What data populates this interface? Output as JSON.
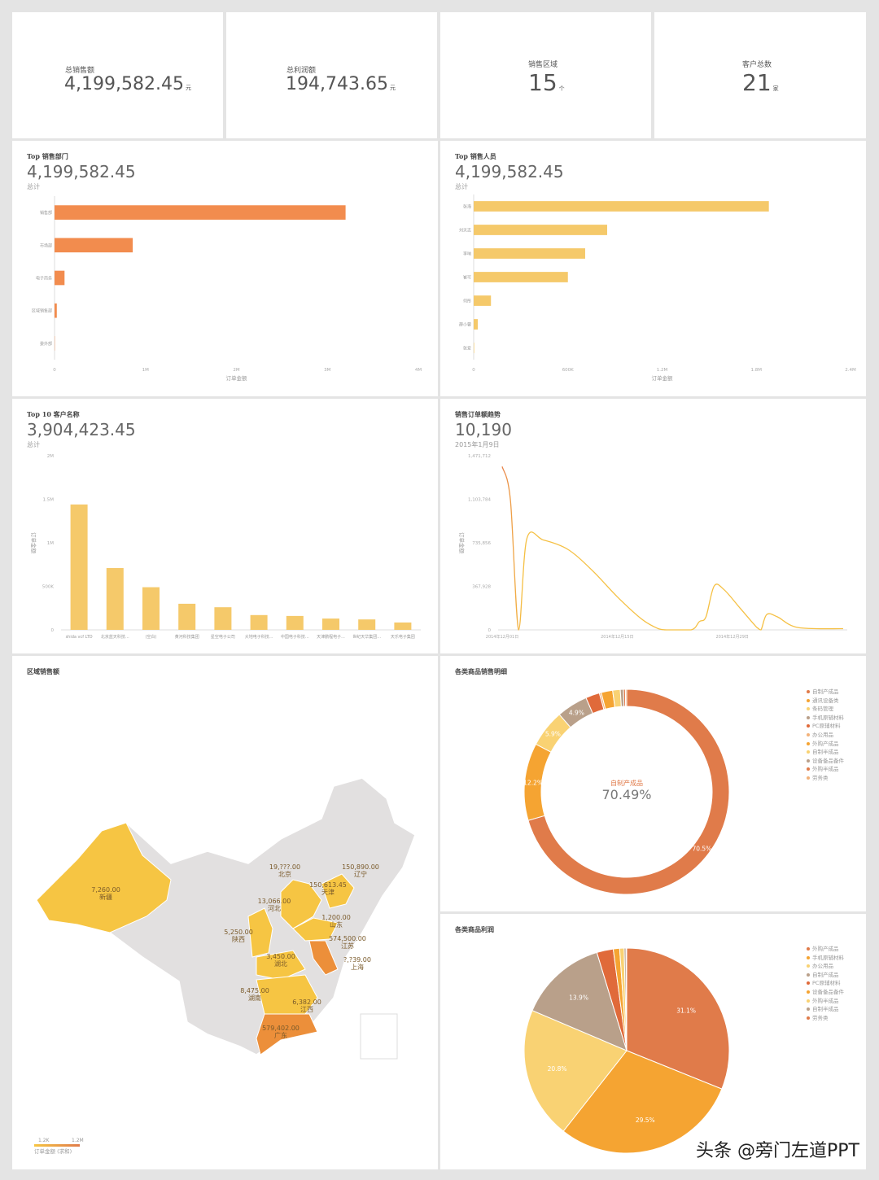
{
  "kpis": [
    {
      "label": "总销售额",
      "value": "4,199,582.45",
      "unit": "元"
    },
    {
      "label": "总利润额",
      "value": "194,743.65",
      "unit": "元"
    },
    {
      "label": "销售区域",
      "value": "15",
      "unit": "个"
    },
    {
      "label": "客户总数",
      "value": "21",
      "unit": "家"
    }
  ],
  "dept": {
    "title": "Top 销售部门",
    "total": "4,199,582.45",
    "sub": "总计"
  },
  "staff": {
    "title": "Top 销售人员",
    "total": "4,199,582.45",
    "sub": "总计"
  },
  "cust": {
    "title": "Top 10 客户名称",
    "total": "3,904,423.45",
    "sub": "总计"
  },
  "trend": {
    "title": "销售订单额趋势",
    "total": "10,190",
    "sub": "2015年1月9日"
  },
  "map": {
    "title": "区域销售额",
    "legend_min": "1.2K",
    "legend_max": "1.2M",
    "legend_label": "订单金额 (求和)",
    "regions": [
      {
        "name": "新疆",
        "value": "7,260.00"
      },
      {
        "name": "北京",
        "value": "19,???.00"
      },
      {
        "name": "天津",
        "value": "150,613.45"
      },
      {
        "name": "河北",
        "value": "13,066.00"
      },
      {
        "name": "辽宁",
        "value": "150,890.00"
      },
      {
        "name": "山东",
        "value": "1,200.00"
      },
      {
        "name": "陕西",
        "value": "5,250.00"
      },
      {
        "name": "江苏",
        "value": "574,500.00"
      },
      {
        "name": "上海",
        "value": "?,?39.00"
      },
      {
        "name": "湖北",
        "value": "3,450.00"
      },
      {
        "name": "湖南",
        "value": "8,475.00"
      },
      {
        "name": "江西",
        "value": "6,382.00"
      },
      {
        "name": "广东",
        "value": "579,402.00"
      }
    ]
  },
  "donut": {
    "title": "各类商品销售明细",
    "center_label": "自制产成品",
    "center_value": "70.49%"
  },
  "pie": {
    "title": "各类商品利润"
  },
  "watermark": "头条 @旁门左道PPT",
  "chart_data": [
    {
      "type": "bar",
      "orientation": "horizontal",
      "id": "dept",
      "categories": [
        "销售部",
        "市场部",
        "电子商务",
        "区域销售部",
        "委外部"
      ],
      "values": [
        3200000,
        860000,
        110000,
        25000,
        3000
      ],
      "xlabel": "订单金额",
      "xlim": [
        0,
        4000000
      ],
      "ticks": [
        "0",
        "1M",
        "2M",
        "3M",
        "4M"
      ],
      "color": "#f28c4e"
    },
    {
      "type": "bar",
      "orientation": "horizontal",
      "id": "staff",
      "categories": [
        "张海",
        "刘天志",
        "李响",
        "崔可",
        "何彤",
        "薛小蓉",
        "张爱"
      ],
      "values": [
        1880000,
        850000,
        710000,
        600000,
        110000,
        26000,
        3000
      ],
      "xlabel": "订单金额",
      "xlim": [
        0,
        2400000
      ],
      "ticks": [
        "0",
        "600K",
        "1.2M",
        "1.8M",
        "2.4M"
      ],
      "color": "#f5c96a"
    },
    {
      "type": "bar",
      "orientation": "vertical",
      "id": "cust",
      "categories": [
        "shida vcf LTD",
        "北京蓝天科技...",
        "(空白)",
        "黄河科技集团",
        "星空电子公司",
        "大地电子科技...",
        "中国电子科技...",
        "天津鹏程电子...",
        "世纪天华集团...",
        "天乐电子集团"
      ],
      "values": [
        1440000,
        710000,
        490000,
        300000,
        260000,
        170000,
        160000,
        130000,
        120000,
        85000
      ],
      "ylabel": "订单金额",
      "ylim": [
        0,
        2000000
      ],
      "ticks": [
        "0",
        "500K",
        "1M",
        "1.5M",
        "2M"
      ],
      "color": "#f5c96a"
    },
    {
      "type": "line",
      "id": "trend",
      "ylabel": "订单金额",
      "ylim": [
        0,
        1471712
      ],
      "yticks": [
        "0",
        "367,928",
        "735,856",
        "1,103,784",
        "1,471,712"
      ],
      "xticks": [
        "2014年12月01日",
        "2014年12月15日",
        "2014年12月29日"
      ],
      "xlim": [
        0,
        42
      ],
      "points": [
        [
          0,
          1380000
        ],
        [
          1,
          1100000
        ],
        [
          2,
          0
        ],
        [
          3,
          770000
        ],
        [
          5,
          760000
        ],
        [
          8,
          680000
        ],
        [
          11,
          500000
        ],
        [
          14,
          280000
        ],
        [
          17,
          90000
        ],
        [
          19,
          10000
        ],
        [
          20,
          0
        ],
        [
          23,
          0
        ],
        [
          24,
          70000
        ],
        [
          24.8,
          110000
        ],
        [
          25.8,
          370000
        ],
        [
          27,
          340000
        ],
        [
          29,
          180000
        ],
        [
          31,
          20000
        ],
        [
          31.5,
          0
        ],
        [
          32.2,
          130000
        ],
        [
          33.5,
          110000
        ],
        [
          36,
          20000
        ],
        [
          41.5,
          10190
        ]
      ]
    },
    {
      "type": "pie",
      "id": "donut",
      "hole": true,
      "labels": [
        "自制产成品",
        "通讯设备类",
        "条码管理",
        "手机原辅材料",
        "PC原辅材料",
        "办公用品",
        "外购产成品",
        "自制半成品",
        "设备备品备件",
        "外购半成品",
        "劳务类"
      ],
      "values": [
        70.5,
        12.2,
        5.9,
        4.9,
        2.2,
        0.3,
        1.8,
        1.2,
        0.5,
        0.3,
        0.2
      ],
      "order": [
        0,
        1,
        2,
        3,
        4,
        5,
        6,
        7,
        8,
        9,
        10
      ],
      "colors": [
        "#e07b4a",
        "#f5a432",
        "#f9d273",
        "#b9a08a",
        "#e06a3a",
        "#f2b27a",
        "#f5a432",
        "#f9d273",
        "#b9a08a",
        "#e07b4a",
        "#f2b27a"
      ],
      "shown_labels": [
        "70.5%",
        "12.2%",
        "5.9%",
        "4.9%"
      ]
    },
    {
      "type": "pie",
      "id": "pie",
      "hole": false,
      "labels": [
        "外购产成品",
        "手机原辅材料",
        "办公用品",
        "自制产成品",
        "PC原辅材料",
        "设备备品备件",
        "外购半成品",
        "自制半成品",
        "劳务类"
      ],
      "values": [
        31.1,
        29.5,
        20.8,
        13.9,
        2.6,
        1.0,
        0.7,
        0.3,
        0.1
      ],
      "colors": [
        "#e07b4a",
        "#f5a432",
        "#f9d273",
        "#b9a08a",
        "#e06a3a",
        "#f5a432",
        "#f9d273",
        "#b9a08a",
        "#e07b4a"
      ],
      "shown_labels": [
        "31.1%",
        "29.5%",
        "20.8%",
        "13.9%"
      ]
    }
  ]
}
